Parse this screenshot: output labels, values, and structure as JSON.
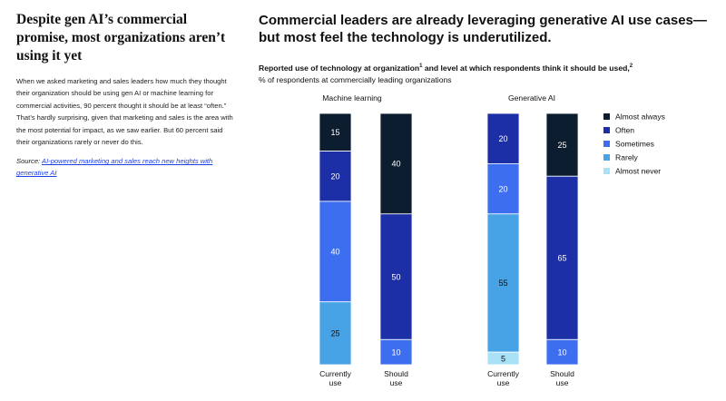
{
  "left": {
    "title": "Despite gen AI’s commercial promise, most organizations aren’t using it yet",
    "body": "When we asked marketing and sales leaders how much they thought their organization should be using gen AI or machine learning for commercial activities, 90 percent thought it should be at least “often.” That’s hardly surprising, given that marketing and sales is the area with the most potential for impact, as we saw earlier. But 60 percent said their organizations rarely or never do this.",
    "source_prefix": "Source: ",
    "source_link": "AI-powered marketing and sales reach new heights with generative AI"
  },
  "headline": "Commercial leaders are already leveraging generative AI use cases—but most feel the technology is underutilized.",
  "subtitle": {
    "title": "Reported use of technology at organization",
    "note1": "1",
    "middle": " and level at which respondents think it should be used,",
    "note2": "2",
    "units": "% of respondents at commercially leading organizations"
  },
  "colors": {
    "almost_always": "#0b1d2e",
    "often": "#1c2fa6",
    "sometimes": "#3d6ef0",
    "rarely": "#47a3e6",
    "almost_never": "#a9e1f7"
  },
  "chart_data": {
    "type": "bar",
    "stacked": true,
    "unit": "% of respondents",
    "legend": [
      "Almost always",
      "Often",
      "Sometimes",
      "Rarely",
      "Almost never"
    ],
    "groups": [
      {
        "title": "Machine learning",
        "bars": [
          {
            "label": [
              "Currently",
              "use"
            ],
            "segments": [
              {
                "category": "Almost always",
                "value": 15
              },
              {
                "category": "Often",
                "value": 20
              },
              {
                "category": "Sometimes",
                "value": 40
              },
              {
                "category": "Rarely",
                "value": 25
              }
            ]
          },
          {
            "label": [
              "Should",
              "use"
            ],
            "segments": [
              {
                "category": "Almost always",
                "value": 40
              },
              {
                "category": "Often",
                "value": 50
              },
              {
                "category": "Sometimes",
                "value": 10
              }
            ]
          }
        ]
      },
      {
        "title": "Generative AI",
        "bars": [
          {
            "label": [
              "Currently",
              "use"
            ],
            "segments": [
              {
                "category": "Often",
                "value": 20
              },
              {
                "category": "Sometimes",
                "value": 20
              },
              {
                "category": "Rarely",
                "value": 55
              },
              {
                "category": "Almost never",
                "value": 5
              }
            ]
          },
          {
            "label": [
              "Should",
              "use"
            ],
            "segments": [
              {
                "category": "Almost always",
                "value": 25
              },
              {
                "category": "Often",
                "value": 65
              },
              {
                "category": "Sometimes",
                "value": 10
              }
            ]
          }
        ]
      }
    ]
  }
}
